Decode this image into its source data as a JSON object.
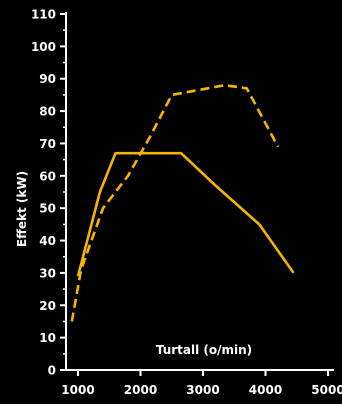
{
  "chart_data": {
    "type": "line",
    "xlabel": "Turtall (o/min)",
    "ylabel": "Effekt (kW)",
    "xlim": [
      1000,
      5000
    ],
    "ylim": [
      0,
      110
    ],
    "x_ticks": [
      "1000",
      "2000",
      "3000",
      "4000",
      "5000"
    ],
    "y_ticks": [
      "0",
      "10",
      "20",
      "30",
      "40",
      "50",
      "60",
      "70",
      "80",
      "90",
      "100",
      "110"
    ],
    "grid": false,
    "series": [
      {
        "style": "solid",
        "color": "#f5b400",
        "points": [
          [
            1000,
            29
          ],
          [
            1350,
            55
          ],
          [
            1600,
            67
          ],
          [
            2650,
            67
          ],
          [
            3200,
            57
          ],
          [
            3900,
            45
          ],
          [
            4450,
            30
          ]
        ]
      },
      {
        "style": "dashed",
        "color": "#f5b400",
        "points": [
          [
            900,
            15
          ],
          [
            1050,
            31
          ],
          [
            1400,
            50
          ],
          [
            1800,
            60
          ],
          [
            2150,
            72
          ],
          [
            2500,
            85
          ],
          [
            3350,
            88
          ],
          [
            3700,
            87
          ],
          [
            4200,
            69
          ]
        ]
      }
    ]
  }
}
